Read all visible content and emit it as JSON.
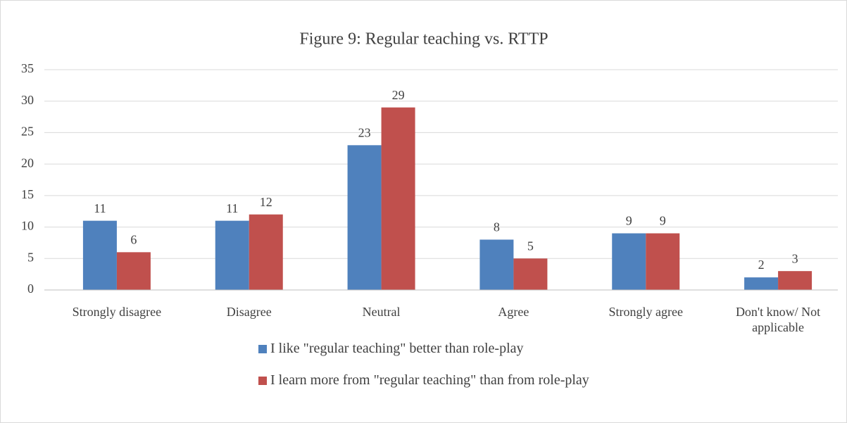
{
  "chart_data": {
    "type": "bar",
    "title": "Figure 9: Regular teaching vs. RTTP",
    "categories": [
      "Strongly disagree",
      "Disagree",
      "Neutral",
      "Agree",
      "Strongly agree",
      "Don't know/ Not applicable"
    ],
    "series": [
      {
        "name": "I like \"regular teaching\" better than role-play",
        "color": "#4f81bd",
        "values": [
          11,
          11,
          23,
          8,
          9,
          2
        ]
      },
      {
        "name": "I learn more from \"regular teaching\" than from role-play",
        "color": "#c0504d",
        "values": [
          6,
          12,
          29,
          5,
          9,
          3
        ]
      }
    ],
    "ylim": [
      0,
      35
    ],
    "yticks": [
      0,
      5,
      10,
      15,
      20,
      25,
      30,
      35
    ],
    "grid": true,
    "legend": "bottom"
  }
}
